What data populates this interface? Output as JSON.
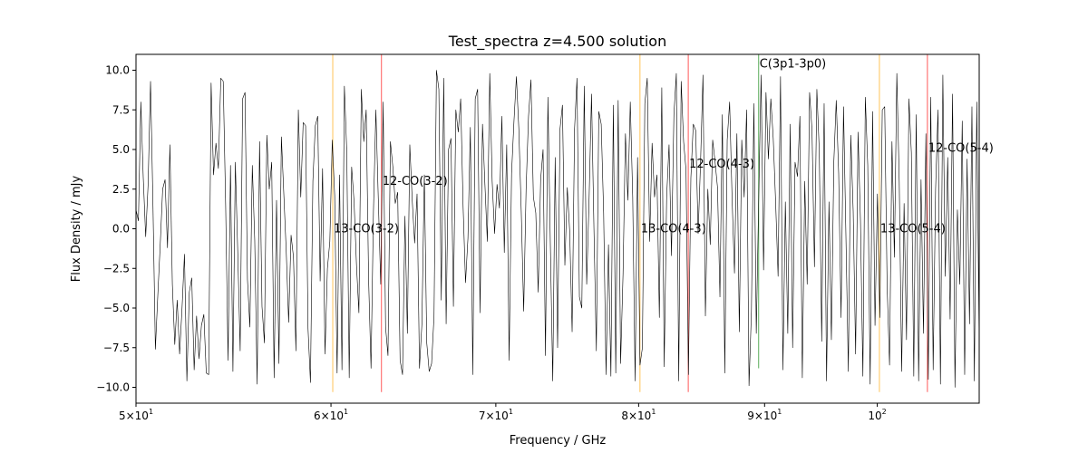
{
  "chart_data": {
    "type": "line",
    "title": "Test_spectra z=4.500 solution",
    "xlabel": "Frequency / GHz",
    "ylabel": "Flux Density / mJy",
    "xscale": "log",
    "xlim": [
      50,
      110
    ],
    "ylim": [
      -11,
      11
    ],
    "grid": false,
    "x_ticks": [
      {
        "value": 50,
        "base": "5×10",
        "exp": "1"
      },
      {
        "value": 60,
        "base": "6×10",
        "exp": "1"
      },
      {
        "value": 70,
        "base": "7×10",
        "exp": "1"
      },
      {
        "value": 80,
        "base": "8×10",
        "exp": "1"
      },
      {
        "value": 90,
        "base": "9×10",
        "exp": "1"
      },
      {
        "value": 100,
        "base": "10",
        "exp": "2"
      }
    ],
    "y_ticks": [
      "−10.0",
      "−7.5",
      "−5.0",
      "−2.5",
      "0.0",
      "2.5",
      "5.0",
      "7.5",
      "10.0"
    ],
    "y_tick_values": [
      -10,
      -7.5,
      -5,
      -2.5,
      0,
      2.5,
      5,
      7.5,
      10
    ],
    "series": [
      {
        "color": "#000000",
        "x_start": 50,
        "x_end": 110,
        "values": [
          1.2,
          0.5,
          8.0,
          3.2,
          -0.5,
          2.8,
          9.3,
          1.5,
          -7.6,
          -4.2,
          -1.0,
          2.5,
          3.1,
          -1.2,
          5.3,
          -3.5,
          -7.3,
          -4.5,
          -7.9,
          -5.0,
          -1.6,
          -9.6,
          -4.0,
          -3.1,
          -8.9,
          -5.5,
          -8.2,
          -6.1,
          -5.4,
          -9.1,
          -9.2,
          9.2,
          3.4,
          5.4,
          3.8,
          9.5,
          9.3,
          1.5,
          -8.3,
          4.0,
          -9.0,
          4.2,
          -1.5,
          -7.7,
          8.2,
          8.6,
          -3.2,
          -6.2,
          4.0,
          -0.7,
          -9.8,
          5.5,
          -4.9,
          -7.2,
          5.9,
          2.5,
          4.2,
          -9.4,
          1.8,
          -8.5,
          5.8,
          2.2,
          -1.4,
          -5.9,
          -0.4,
          -1.8,
          -7.7,
          7.5,
          2.0,
          6.7,
          6.5,
          -6.3,
          -9.7,
          3.0,
          6.5,
          7.1,
          -3.3,
          3.8,
          -7.9,
          -2.5,
          -0.8,
          5.6,
          2.1,
          -9.1,
          3.4,
          -8.9,
          9.0,
          4.8,
          -9.4,
          3.9,
          1.7,
          -2.3,
          -5.3,
          8.8,
          5.5,
          7.5,
          -3.2,
          -8.8,
          1.1,
          7.5,
          1.9,
          -3.5,
          8.0,
          -6.2,
          -8.0,
          5.5,
          3.9,
          1.6,
          2.3,
          -8.3,
          -9.2,
          0.8,
          -6.6,
          5.3,
          1.8,
          -0.9,
          2.2,
          -8.8,
          -6.0,
          3.4,
          -7.2,
          -9.0,
          -8.5,
          -5.5,
          10.0,
          8.8,
          -4.5,
          9.5,
          -6.0,
          5.0,
          5.7,
          -4.9,
          7.5,
          6.1,
          8.2,
          1.4,
          -3.4,
          -0.6,
          6.4,
          -9.2,
          8.2,
          8.8,
          -5.3,
          6.6,
          2.8,
          -0.8,
          9.8,
          3.0,
          -0.3,
          2.8,
          1.3,
          7.1,
          -1.5,
          5.3,
          -8.3,
          3.5,
          6.8,
          9.6,
          6.3,
          1.1,
          -5.2,
          2.5,
          7.1,
          9.4,
          2.0,
          1.0,
          -4.0,
          3.1,
          5.0,
          -8.0,
          8.3,
          -0.9,
          -9.6,
          4.5,
          -7.5,
          6.3,
          7.8,
          -2.3,
          2.6,
          -0.2,
          -6.5,
          6.3,
          9.5,
          -4.3,
          -5.0,
          9.0,
          -3.5,
          1.9,
          8.5,
          0.0,
          -7.7,
          7.4,
          6.6,
          1.0,
          -9.2,
          -1.0,
          -9.3,
          7.8,
          -9.1,
          8.1,
          -8.5,
          -2.9,
          6.0,
          1.8,
          8.0,
          2.0,
          -9.6,
          4.5,
          -8.6,
          -7.5,
          7.9,
          9.5,
          -0.8,
          5.4,
          2.0,
          3.4,
          -5.6,
          8.9,
          -8.7,
          2.0,
          5.3,
          -1.7,
          7.2,
          9.8,
          -9.6,
          9.3,
          5.5,
          3.7,
          -9.2,
          3.2,
          6.6,
          6.2,
          -0.3,
          4.2,
          9.7,
          -5.5,
          2.5,
          -1.0,
          5.6,
          4.2,
          2.6,
          -4.3,
          7.2,
          -9.1,
          5.6,
          8.0,
          2.0,
          -2.8,
          6.0,
          -6.5,
          5.6,
          2.0,
          7.5,
          -9.9,
          -5.2,
          7.9,
          -6.6,
          1.9,
          9.7,
          -2.6,
          8.6,
          4.4,
          8.2,
          5.7,
          1.6,
          -3.0,
          9.6,
          -8.9,
          1.7,
          -6.6,
          6.6,
          -7.5,
          4.2,
          3.3,
          7.1,
          -9.4,
          3.0,
          -3.5,
          8.6,
          6.2,
          -2.4,
          8.8,
          4.9,
          -7.1,
          7.9,
          -9.6,
          1.7,
          -7.0,
          4.2,
          8.1,
          3.5,
          -5.6,
          7.7,
          -0.5,
          -9.0,
          5.9,
          1.1,
          -7.9,
          6.1,
          0.5,
          -9.3,
          8.3,
          4.0,
          -9.8,
          7.4,
          -6.1,
          2.2,
          -5.6,
          7.5,
          7.7,
          -3.6,
          -8.6,
          5.5,
          -1.8,
          9.8,
          3.0,
          -9.0,
          1.6,
          -7.0,
          8.2,
          4.8,
          -9.3,
          7.2,
          -9.6,
          3.1,
          -6.6,
          6.0,
          -9.5,
          8.3,
          -8.9,
          2.5,
          7.5,
          -9.8,
          9.7,
          -3.0,
          4.5,
          -5.7,
          8.5,
          -10.0,
          1.2,
          -3.5,
          6.8,
          -9.2,
          4.4,
          -6.0,
          7.7,
          -9.6,
          8.0,
          -7.4
        ]
      }
    ],
    "lines": [
      {
        "label": "13-CO(3-2)",
        "x": 60.1,
        "color": "#ffa500",
        "ymin": -10.3,
        "ymax": 11,
        "label_y": 0.0
      },
      {
        "label": "12-CO(3-2)",
        "x": 62.9,
        "color": "#ff0000",
        "ymin": -10.3,
        "ymax": 11,
        "label_y": 3.0
      },
      {
        "label": "13-CO(4-3)",
        "x": 80.1,
        "color": "#ffa500",
        "ymin": -10.3,
        "ymax": 11,
        "label_y": 0.0
      },
      {
        "label": "12-CO(4-3)",
        "x": 83.8,
        "color": "#ff0000",
        "ymin": -10.3,
        "ymax": 11,
        "label_y": 4.1
      },
      {
        "label": "C(3p1-3p0)",
        "x": 89.5,
        "color": "#008000",
        "ymin": -8.8,
        "ymax": 11,
        "label_y": 10.4
      },
      {
        "label": "13-CO(5-4)",
        "x": 100.2,
        "color": "#ffa500",
        "ymin": -10.3,
        "ymax": 11,
        "label_y": 0.0
      },
      {
        "label": "12-CO(5-4)",
        "x": 104.8,
        "color": "#ff0000",
        "ymin": -10.3,
        "ymax": 11,
        "label_y": 5.1
      }
    ]
  }
}
